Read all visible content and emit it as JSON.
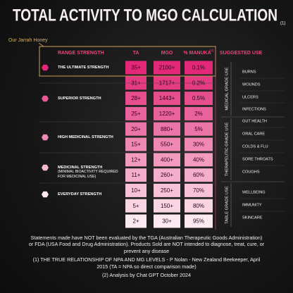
{
  "title": "TOTAL ACTIVITY TO MGO CALCULATION",
  "title_note": "(1)",
  "annotation": "Our Jarrah Honey",
  "table": {
    "headers": [
      "RANGE STRENGTH",
      "TA",
      "MGO",
      "% MANUKA",
      "SUGGESTED USE"
    ],
    "header_note": "(2)",
    "rows": [
      [
        "35+",
        "2100+",
        "0.1%"
      ],
      [
        "31+",
        "1717+",
        "0.2%"
      ],
      [
        "28+",
        "1443+",
        "0.5%"
      ],
      [
        "25+",
        "1220+",
        "2%"
      ],
      [
        "20+",
        "880+",
        "5%"
      ],
      [
        "15+",
        "550+",
        "30%"
      ],
      [
        "12+",
        "400+",
        "40%"
      ],
      [
        "11+",
        "260+",
        "60%"
      ],
      [
        "10+",
        "250+",
        "70%"
      ],
      [
        "5+",
        "150+",
        "80%"
      ],
      [
        "2+",
        "30+",
        "95%"
      ]
    ]
  },
  "strengths": [
    {
      "label": "THE ULTIMATE STRENGTH"
    },
    {
      "label": "SUPERIOR STRENGTH"
    },
    {
      "label": "HIGH MEDICINAL STRENGTH"
    },
    {
      "label": "MEDICINAL STRENGTH",
      "note": "(MINIMAL BIOACTIVITY REQUIRED FOR MEDICINAL USE)"
    },
    {
      "label": "EVERYDAY STRENGTH"
    }
  ],
  "grades": [
    {
      "label": "MEDICAL GRADE USE",
      "uses": [
        "BURNS",
        "WOUNDS",
        "ULCERS",
        "INFECTIONS"
      ]
    },
    {
      "label": "THERAPEUTIC GRADE USE",
      "uses": [
        "GUT HEALTH",
        "ORAL CARE",
        "COLDS & FLU",
        "SORE THROATS",
        "COUGHS"
      ]
    },
    {
      "label": "TABLE GRADE USE",
      "uses": [
        "WELLBEING",
        "IMMUNITY",
        "SKINCARE"
      ]
    }
  ],
  "footer": {
    "disclaimer": "Statements made have NOT been evaluated by the TGA (Australian Therapeutic Goods Administration) or FDA (USA Food and Drug Administration). Products Sold are NOT intended to diagnose, treat, cure, or prevent any disease",
    "reference": "(1) THE TRUE RELATIONSHIP OF NPA AND MG LEVELS - P Nolan - New Zealand Beekeeper, April 2015 (TA = NPA so direct comparison made)",
    "analysis": "(2) Analysis by Chat GPT October 2024"
  }
}
